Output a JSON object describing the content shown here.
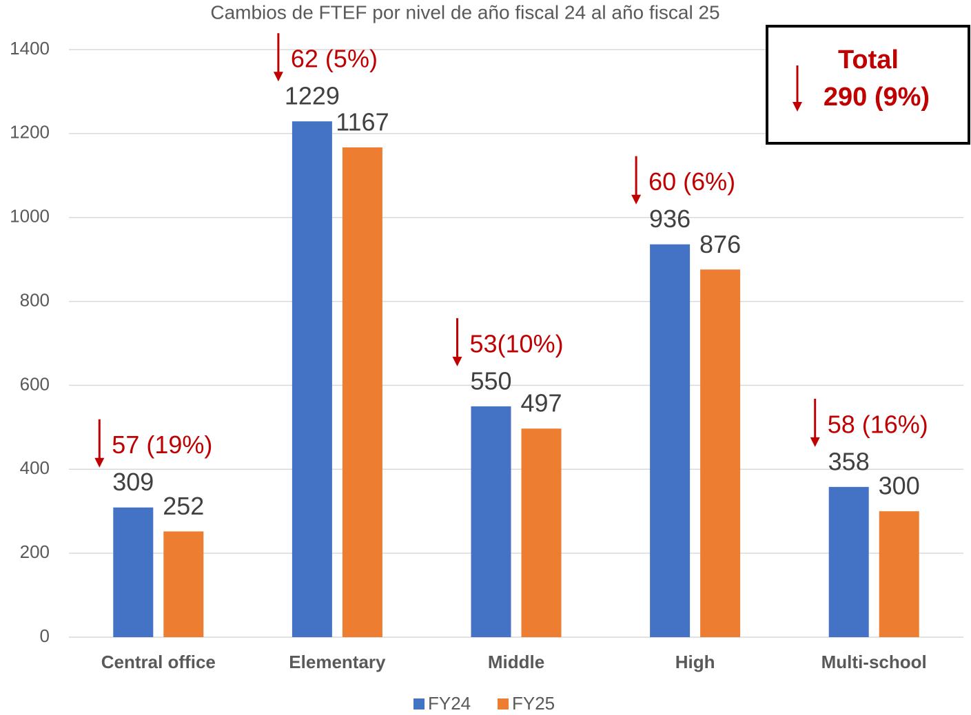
{
  "chart_data": {
    "type": "bar",
    "title": "Cambios de FTEF por nivel de año fiscal 24 al año fiscal 25",
    "categories": [
      "Central office",
      "Elementary",
      "Middle",
      "High",
      "Multi-school"
    ],
    "series": [
      {
        "name": "FY24",
        "color": "#4472c4",
        "values": [
          309,
          1229,
          550,
          936,
          358
        ]
      },
      {
        "name": "FY25",
        "color": "#ed7d31",
        "values": [
          252,
          1167,
          497,
          876,
          300
        ]
      }
    ],
    "annotations": [
      "57 (19%)",
      "62 (5%)",
      "53(10%)",
      "60 (6%)",
      "58 (16%)"
    ],
    "annotation_color": "#c00000",
    "total_label": "Total",
    "total_value": "290 (9%)",
    "ylim": [
      0,
      1400
    ],
    "yticks": [
      0,
      200,
      400,
      600,
      800,
      1000,
      1200,
      1400
    ],
    "grid": true,
    "legend": "bottom"
  }
}
